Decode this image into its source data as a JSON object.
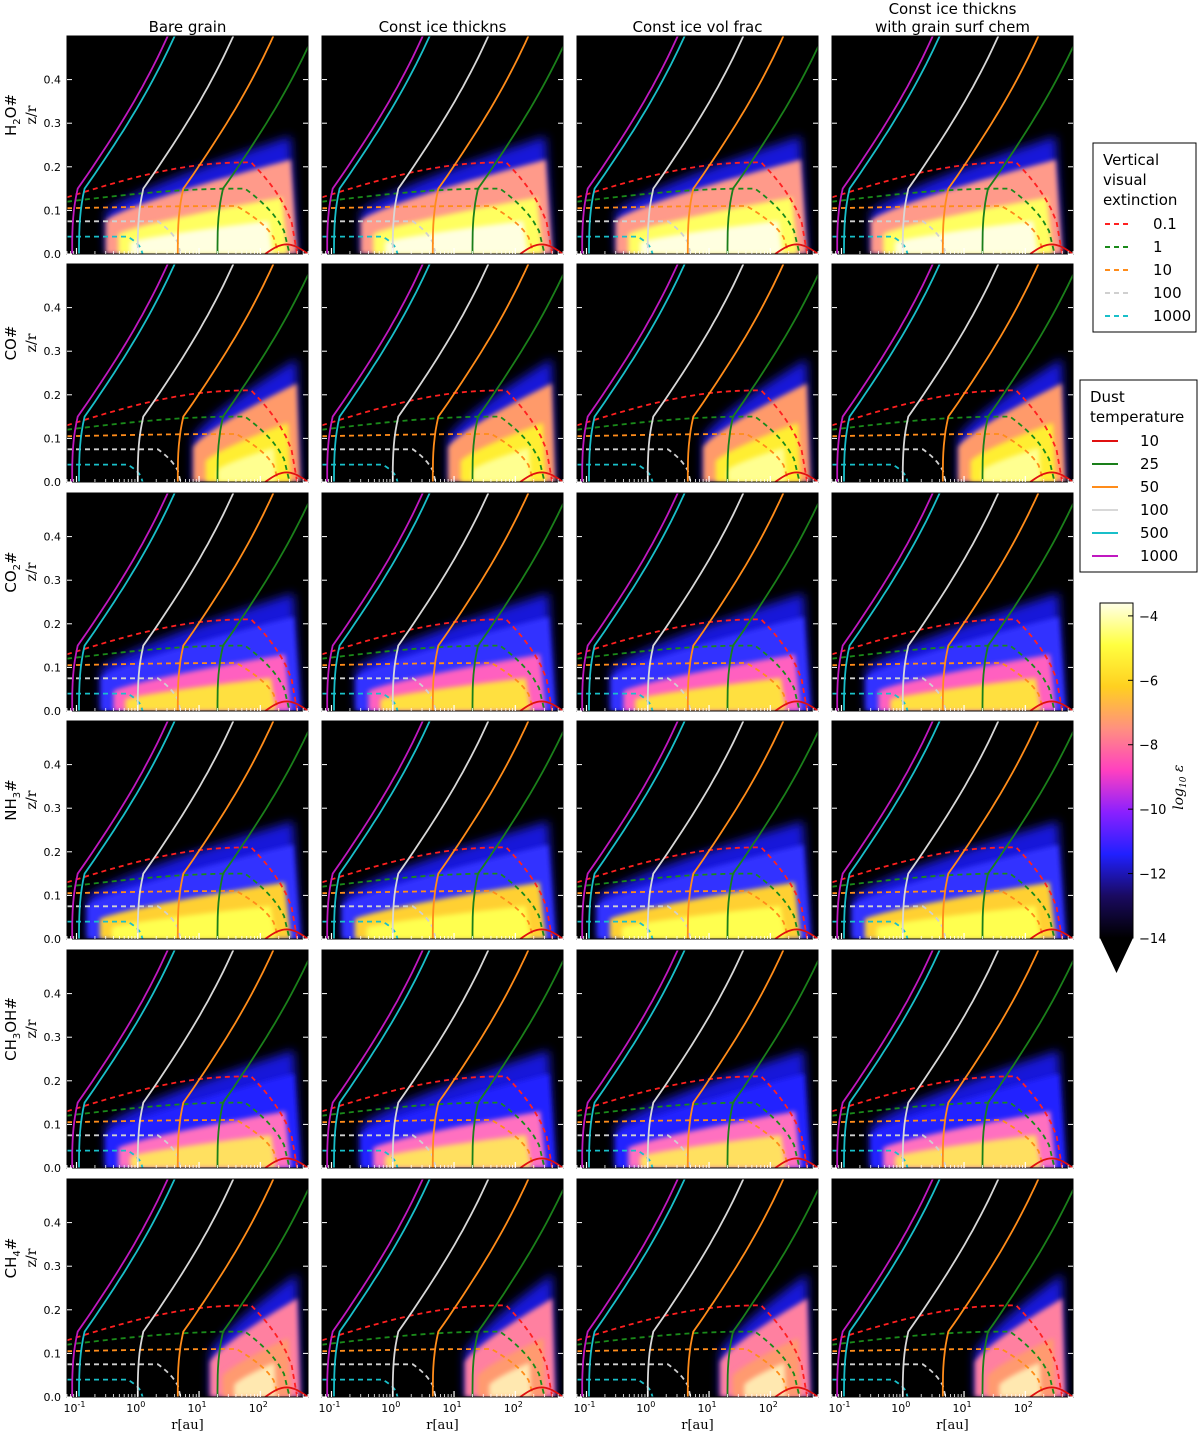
{
  "figure": {
    "columns": [
      "Bare grain",
      "Const ice thickns",
      "Const ice vol frac",
      "Const ice thickns\nwith grain surf chem"
    ],
    "rows": [
      {
        "base": "H",
        "sub": "2",
        "rest": "O#"
      },
      {
        "base": "CO#",
        "sub": "",
        "rest": ""
      },
      {
        "base": "CO",
        "sub": "2",
        "rest": "#"
      },
      {
        "base": "NH",
        "sub": "3",
        "rest": "#"
      },
      {
        "base": "CH",
        "sub": "3",
        "rest": "OH#"
      },
      {
        "base": "CH",
        "sub": "4",
        "rest": "#"
      }
    ],
    "ylabel": "z/r",
    "xlabel": "r[au]"
  },
  "legends": {
    "extinction": {
      "title": "Vertical\nvisual\nextinction",
      "entries": [
        {
          "label": "0.1",
          "color": "#ff2020"
        },
        {
          "label": "1",
          "color": "#1a8a1a"
        },
        {
          "label": "10",
          "color": "#ff8c1a"
        },
        {
          "label": "100",
          "color": "#d0d0d0"
        },
        {
          "label": "1000",
          "color": "#19bfc9"
        }
      ]
    },
    "temperature": {
      "title": "Dust\ntemperature",
      "entries": [
        {
          "label": "10",
          "color": "#e01010"
        },
        {
          "label": "25",
          "color": "#1a7f1a"
        },
        {
          "label": "50",
          "color": "#ff8c1a"
        },
        {
          "label": "100",
          "color": "#d8d8d8"
        },
        {
          "label": "500",
          "color": "#19bfc9"
        },
        {
          "label": "1000",
          "color": "#c018c0"
        }
      ]
    }
  },
  "colorbar": {
    "label": "log10 ε",
    "ticks": [
      -4,
      -6,
      -8,
      -10,
      -12,
      -14
    ],
    "range": [
      -14,
      -3.6
    ],
    "stops": [
      "#000000",
      "#1a0a60",
      "#2020ff",
      "#8a20ff",
      "#ff40c0",
      "#ff9080",
      "#ffd020",
      "#ffff40",
      "#ffffe8"
    ]
  },
  "chart_data": {
    "type": "heatmap",
    "description_axes": {
      "x_scale": "log",
      "xlim_au": [
        0.07,
        600
      ],
      "ylim": [
        0,
        0.5
      ],
      "x_ticks": [
        0.1,
        1,
        10,
        100
      ],
      "x_tick_labels": [
        "10",
        "10",
        "10",
        "10"
      ],
      "x_tick_exponents": [
        "-1",
        "0",
        "1",
        "2"
      ],
      "y_ticks": [
        0.0,
        0.1,
        0.2,
        0.3,
        0.4
      ],
      "y_tick_labels": [
        "0.0",
        "0.1",
        "0.2",
        "0.3",
        "0.4"
      ]
    },
    "temperature_contours": [
      {
        "T": 1000,
        "r_base_au": 0.085
      },
      {
        "T": 500,
        "r_base_au": 0.11
      },
      {
        "T": 100,
        "r_base_au": 1.0
      },
      {
        "T": 50,
        "r_base_au": 4.5
      },
      {
        "T": 25,
        "r_base_au": 20
      }
    ],
    "extinction_contours": [
      {
        "Av": 0.1,
        "z_over_r_inner": 0.13,
        "z_over_r_peak": 0.21,
        "r_outer_au": 400
      },
      {
        "Av": 1,
        "z_over_r_inner": 0.12,
        "z_over_r_peak": 0.15,
        "r_outer_au": 300
      },
      {
        "Av": 10,
        "z_over_r_inner": 0.105,
        "z_over_r_peak": 0.11,
        "r_outer_au": 200
      },
      {
        "Av": 100,
        "z_over_r_inner": 0.075,
        "z_over_r_peak": 0.075,
        "r_outer_au": 5
      },
      {
        "Av": 1000,
        "z_over_r_inner": 0.04,
        "z_over_r_peak": 0.04,
        "r_outer_au": 1.2
      }
    ]
  }
}
